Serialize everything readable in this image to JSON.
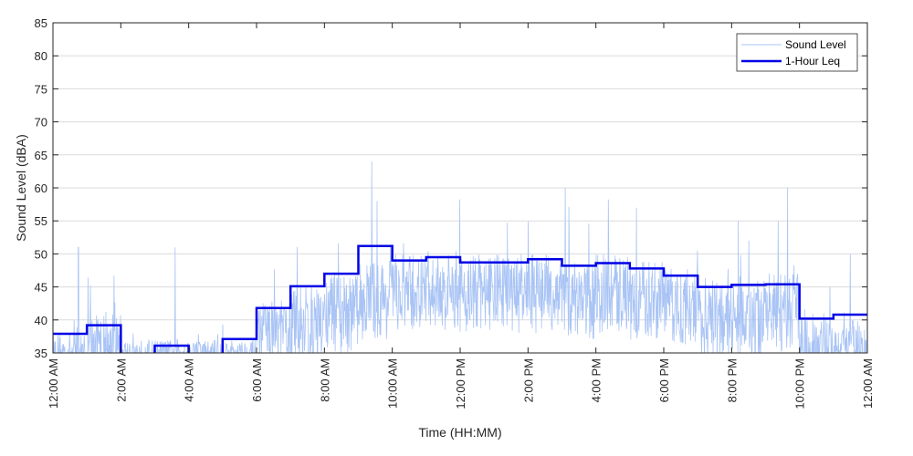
{
  "chart_data": {
    "type": "line",
    "title": "",
    "xlabel": "Time (HH:MM)",
    "ylabel": "Sound Level (dBA)",
    "ylim": [
      35,
      85
    ],
    "xlim_hours": [
      0,
      24
    ],
    "y_ticks": [
      35,
      40,
      45,
      50,
      55,
      60,
      65,
      70,
      75,
      80,
      85
    ],
    "x_ticks": [
      {
        "hour": 0,
        "label": "12:00 AM"
      },
      {
        "hour": 2,
        "label": "2:00 AM"
      },
      {
        "hour": 4,
        "label": "4:00 AM"
      },
      {
        "hour": 6,
        "label": "6:00 AM"
      },
      {
        "hour": 8,
        "label": "8:00 AM"
      },
      {
        "hour": 10,
        "label": "10:00 AM"
      },
      {
        "hour": 12,
        "label": "12:00 PM"
      },
      {
        "hour": 14,
        "label": "2:00 PM"
      },
      {
        "hour": 16,
        "label": "4:00 PM"
      },
      {
        "hour": 18,
        "label": "6:00 PM"
      },
      {
        "hour": 20,
        "label": "8:00 PM"
      },
      {
        "hour": 22,
        "label": "10:00 PM"
      },
      {
        "hour": 24,
        "label": "12:00 AM"
      }
    ],
    "grid": "horizontal",
    "legend_position": "top-right",
    "series": [
      {
        "name": "Sound Level",
        "color": "#a9c4f5",
        "style": "thin",
        "hourly_mean": [
          35,
          36,
          35,
          35,
          35,
          35,
          38,
          39,
          41,
          43,
          44,
          44,
          44,
          44,
          44,
          43,
          44,
          43,
          42,
          40,
          40,
          41,
          36,
          36
        ],
        "hourly_spread": [
          3,
          5,
          2,
          2,
          2,
          2,
          5,
          6,
          6,
          6,
          6,
          6,
          6,
          6,
          6,
          6,
          6,
          6,
          6,
          6,
          6,
          6,
          5,
          4
        ],
        "notable_peaks": [
          {
            "hour": 0.75,
            "value": 51
          },
          {
            "hour": 3.6,
            "value": 51
          },
          {
            "hour": 9.4,
            "value": 64
          },
          {
            "hour": 9.55,
            "value": 58
          },
          {
            "hour": 15.1,
            "value": 60
          },
          {
            "hour": 17.2,
            "value": 57
          },
          {
            "hour": 20.2,
            "value": 55
          },
          {
            "hour": 21.65,
            "value": 60
          },
          {
            "hour": 23.5,
            "value": 50
          }
        ]
      },
      {
        "name": "1-Hour Leq",
        "color": "#0000e6",
        "style": "step",
        "hours": [
          0,
          1,
          2,
          3,
          4,
          5,
          6,
          7,
          8,
          9,
          10,
          11,
          12,
          13,
          14,
          15,
          16,
          17,
          18,
          19,
          20,
          21,
          22,
          23
        ],
        "values": [
          37.9,
          39.2,
          30,
          36.1,
          30,
          37.1,
          41.8,
          45.1,
          47.0,
          51.2,
          49.0,
          49.5,
          48.7,
          48.7,
          49.2,
          48.2,
          48.6,
          47.8,
          46.7,
          45.0,
          45.3,
          45.4,
          40.2,
          40.8
        ]
      }
    ]
  },
  "colors": {
    "axis": "#262626",
    "grid": "#dcdcdc",
    "background": "#ffffff"
  }
}
